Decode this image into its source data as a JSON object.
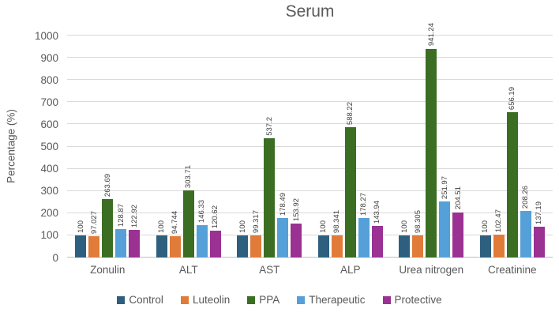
{
  "chart_data": {
    "type": "bar",
    "title": "Serum",
    "xlabel": "",
    "ylabel": "Percentage (%)",
    "ylim": [
      0,
      1000
    ],
    "yticks": [
      0,
      100,
      200,
      300,
      400,
      500,
      600,
      700,
      800,
      900,
      1000
    ],
    "grid": "horizontal",
    "legend_position": "bottom",
    "categories": [
      "Zonulin",
      "ALT",
      "AST",
      "ALP",
      "Urea nitrogen",
      "Creatinine"
    ],
    "series": [
      {
        "name": "Control",
        "color": "#2E5F7F",
        "values": [
          100,
          100,
          100,
          100,
          100,
          100
        ],
        "labels": [
          "100",
          "100",
          "100",
          "100",
          "100",
          "100"
        ]
      },
      {
        "name": "Luteolin",
        "color": "#E07B39",
        "values": [
          97.027,
          94.744,
          99.317,
          98.341,
          98.305,
          102.47
        ],
        "labels": [
          "97.027",
          "94.744",
          "99.317",
          "98.341",
          "98.305",
          "102.47"
        ]
      },
      {
        "name": "PPA",
        "color": "#3B6E23",
        "values": [
          263.69,
          303.71,
          537.2,
          588.22,
          941.24,
          656.19
        ],
        "labels": [
          "263.69",
          "303.71",
          "537.2",
          "588.22",
          "941.24",
          "656.19"
        ]
      },
      {
        "name": "Therapeutic",
        "color": "#55A0D8",
        "values": [
          128.87,
          146.33,
          178.49,
          178.27,
          251.97,
          208.26
        ],
        "labels": [
          "128.87",
          "146.33",
          "178.49",
          "178.27",
          "251.97",
          "208.26"
        ]
      },
      {
        "name": "Protective",
        "color": "#9A3193",
        "values": [
          122.92,
          120.62,
          153.92,
          143.94,
          204.51,
          137.19
        ],
        "labels": [
          "122.92",
          "120.62",
          "153.92",
          "143.94",
          "204.51",
          "137.19"
        ]
      }
    ],
    "text_color": "#595959",
    "value_label_color": "#404040",
    "gridline_color": "#D9D9D9",
    "axis_line_color": "#BFBFBF"
  }
}
